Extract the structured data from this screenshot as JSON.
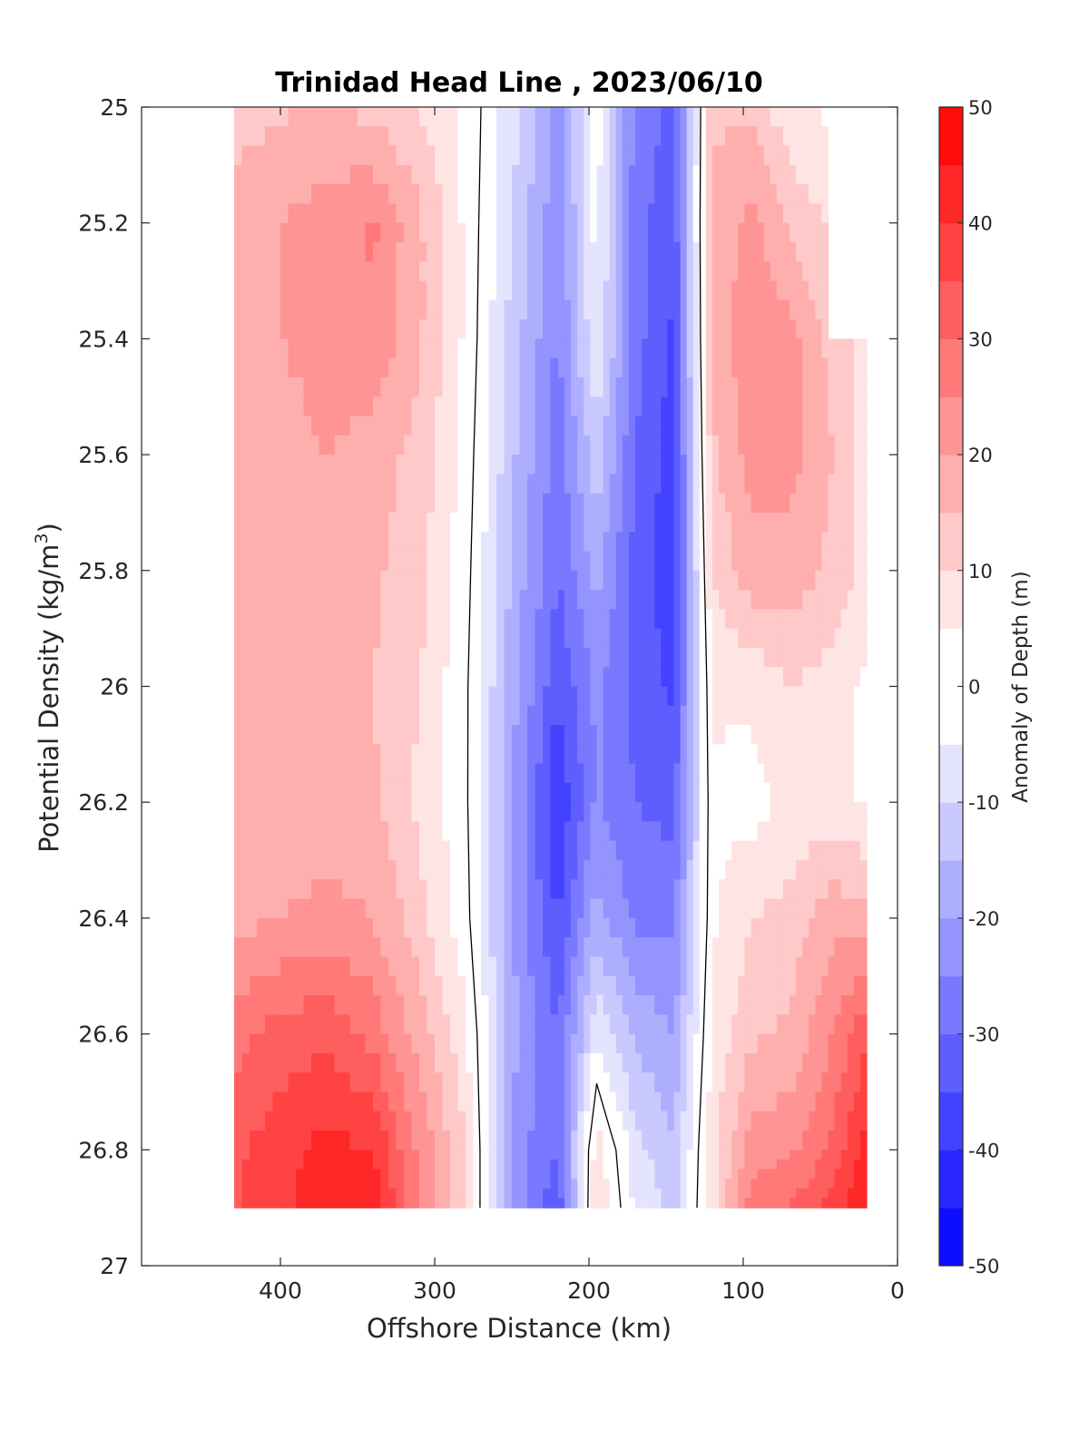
{
  "chart_data": {
    "type": "heatmap",
    "title": "Trinidad Head Line , 2023/06/10",
    "xlabel": "Offshore Distance (km)",
    "ylabel_main": "Potential Density (kg/m",
    "ylabel_sup": "3",
    "ylabel_close": ")",
    "colorbar_label": "Anomaly of Depth (m)",
    "x_reversed": true,
    "xlim": [
      0,
      490
    ],
    "ylim": [
      25,
      27
    ],
    "y_reversed": true,
    "x_ticks": [
      "400",
      "300",
      "200",
      "100",
      "0"
    ],
    "x_tick_values": [
      400,
      300,
      200,
      100,
      0
    ],
    "y_ticks": [
      "25",
      "25.2",
      "25.4",
      "25.6",
      "25.8",
      "26",
      "26.2",
      "26.4",
      "26.6",
      "26.8",
      "27"
    ],
    "y_tick_values": [
      25,
      25.2,
      25.4,
      25.6,
      25.8,
      26,
      26.2,
      26.4,
      26.6,
      26.8,
      27
    ],
    "colorbar_ticks": [
      "50",
      "40",
      "30",
      "20",
      "10",
      "0",
      "-10",
      "-20",
      "-30",
      "-40",
      "-50"
    ],
    "colorbar_tick_values": [
      50,
      40,
      30,
      20,
      10,
      0,
      -10,
      -20,
      -30,
      -40,
      -50
    ],
    "clim": [
      -50,
      50
    ],
    "contour_interval": 5,
    "colormap": "blue-white-red",
    "data_extent": {
      "x": [
        20,
        430
      ],
      "y": [
        25,
        26.9
      ]
    },
    "x": [
      430,
      400,
      370,
      340,
      310,
      280,
      250,
      220,
      195,
      170,
      145,
      120,
      95,
      70,
      45,
      20
    ],
    "y": [
      25.0,
      25.2,
      25.4,
      25.6,
      25.8,
      26.0,
      26.2,
      26.4,
      26.6,
      26.8,
      26.9
    ],
    "z": [
      [
        12,
        14,
        16,
        13,
        10,
        4,
        -8,
        -22,
        -3,
        -26,
        -32,
        14,
        14,
        6,
        4,
        null
      ],
      [
        18,
        20,
        22,
        26,
        16,
        4,
        -10,
        -24,
        -3,
        -28,
        -34,
        16,
        22,
        14,
        10,
        null
      ],
      [
        19,
        20,
        22,
        24,
        16,
        4,
        -12,
        -26,
        -5,
        -28,
        -36,
        16,
        24,
        22,
        14,
        8
      ],
      [
        17,
        18,
        20,
        18,
        13,
        3,
        -14,
        -28,
        -12,
        -30,
        -38,
        14,
        22,
        22,
        16,
        8
      ],
      [
        16,
        16,
        16,
        16,
        12,
        2,
        -16,
        -30,
        -18,
        -32,
        -38,
        10,
        18,
        18,
        14,
        8
      ],
      [
        16,
        16,
        16,
        15,
        10,
        1,
        -18,
        -34,
        -24,
        -32,
        -36,
        6,
        6,
        10,
        8,
        4
      ],
      [
        16,
        15,
        16,
        16,
        9,
        1,
        -20,
        -40,
        -24,
        -30,
        -32,
        4,
        3,
        6,
        7,
        4
      ],
      [
        18,
        20,
        22,
        20,
        12,
        2,
        -20,
        -36,
        -18,
        -26,
        -26,
        4,
        10,
        12,
        18,
        18
      ],
      [
        28,
        32,
        34,
        28,
        18,
        6,
        -18,
        -30,
        -6,
        -16,
        -20,
        6,
        14,
        16,
        24,
        34
      ],
      [
        34,
        38,
        42,
        40,
        24,
        10,
        -22,
        -30,
        8,
        -8,
        -14,
        8,
        22,
        24,
        30,
        42
      ],
      [
        34,
        38,
        44,
        44,
        24,
        10,
        -22,
        -34,
        10,
        -6,
        -12,
        8,
        28,
        30,
        36,
        46
      ]
    ]
  }
}
